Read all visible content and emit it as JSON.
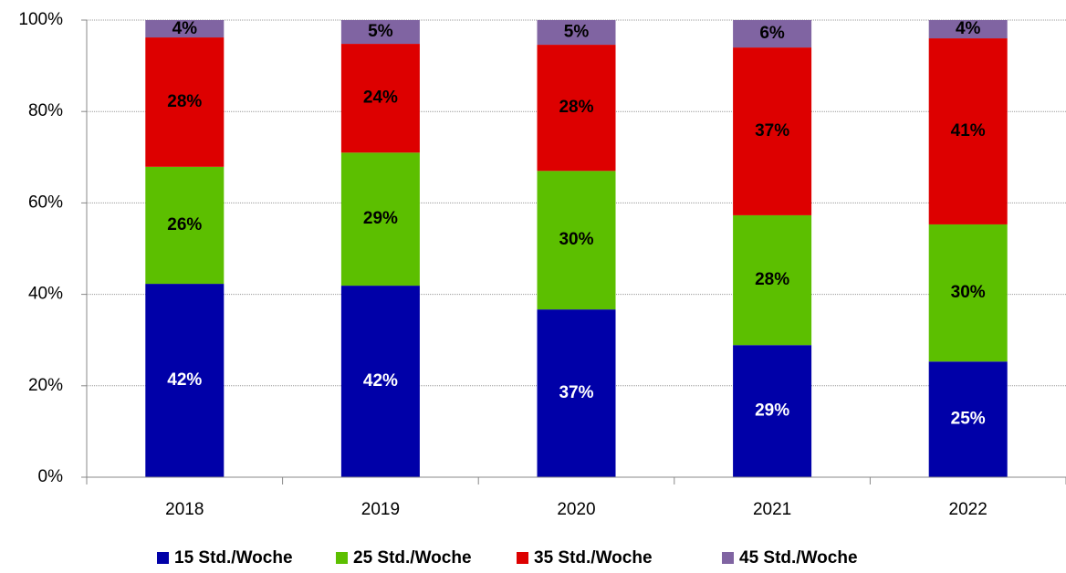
{
  "chart_data": {
    "type": "stacked_bar",
    "categories": [
      "2018",
      "2019",
      "2020",
      "2021",
      "2022"
    ],
    "series": [
      {
        "name": "15 Std./Woche",
        "color": "#0000a8",
        "values": [
          42.3,
          41.9,
          36.7,
          28.9,
          25.3
        ],
        "value_labels": [
          "42%",
          "42%",
          "37%",
          "29%",
          "25%"
        ]
      },
      {
        "name": "25 Std./Woche",
        "color": "#5cbf00",
        "values": [
          25.6,
          29.1,
          30.3,
          28.4,
          30.0
        ],
        "value_labels": [
          "26%",
          "29%",
          "30%",
          "28%",
          "30%"
        ]
      },
      {
        "name": "35 Std./Woche",
        "color": "#dd0000",
        "values": [
          28.3,
          23.8,
          27.6,
          36.7,
          40.7
        ],
        "value_labels": [
          "28%",
          "24%",
          "28%",
          "37%",
          "41%"
        ]
      },
      {
        "name": "45 Std./Woche",
        "color": "#8064a2",
        "values": [
          3.8,
          5.2,
          5.4,
          6.0,
          4.0
        ],
        "value_labels": [
          "4%",
          "5%",
          "5%",
          "6%",
          "4%"
        ]
      }
    ],
    "ylim": [
      0,
      100
    ],
    "yticks": [
      {
        "value": 0,
        "label": "0%"
      },
      {
        "value": 20,
        "label": "20%"
      },
      {
        "value": 40,
        "label": "40%"
      },
      {
        "value": 60,
        "label": "60%"
      },
      {
        "value": 80,
        "label": "80%"
      },
      {
        "value": 100,
        "label": "100%"
      }
    ],
    "grid": true,
    "legend": "bottom"
  }
}
